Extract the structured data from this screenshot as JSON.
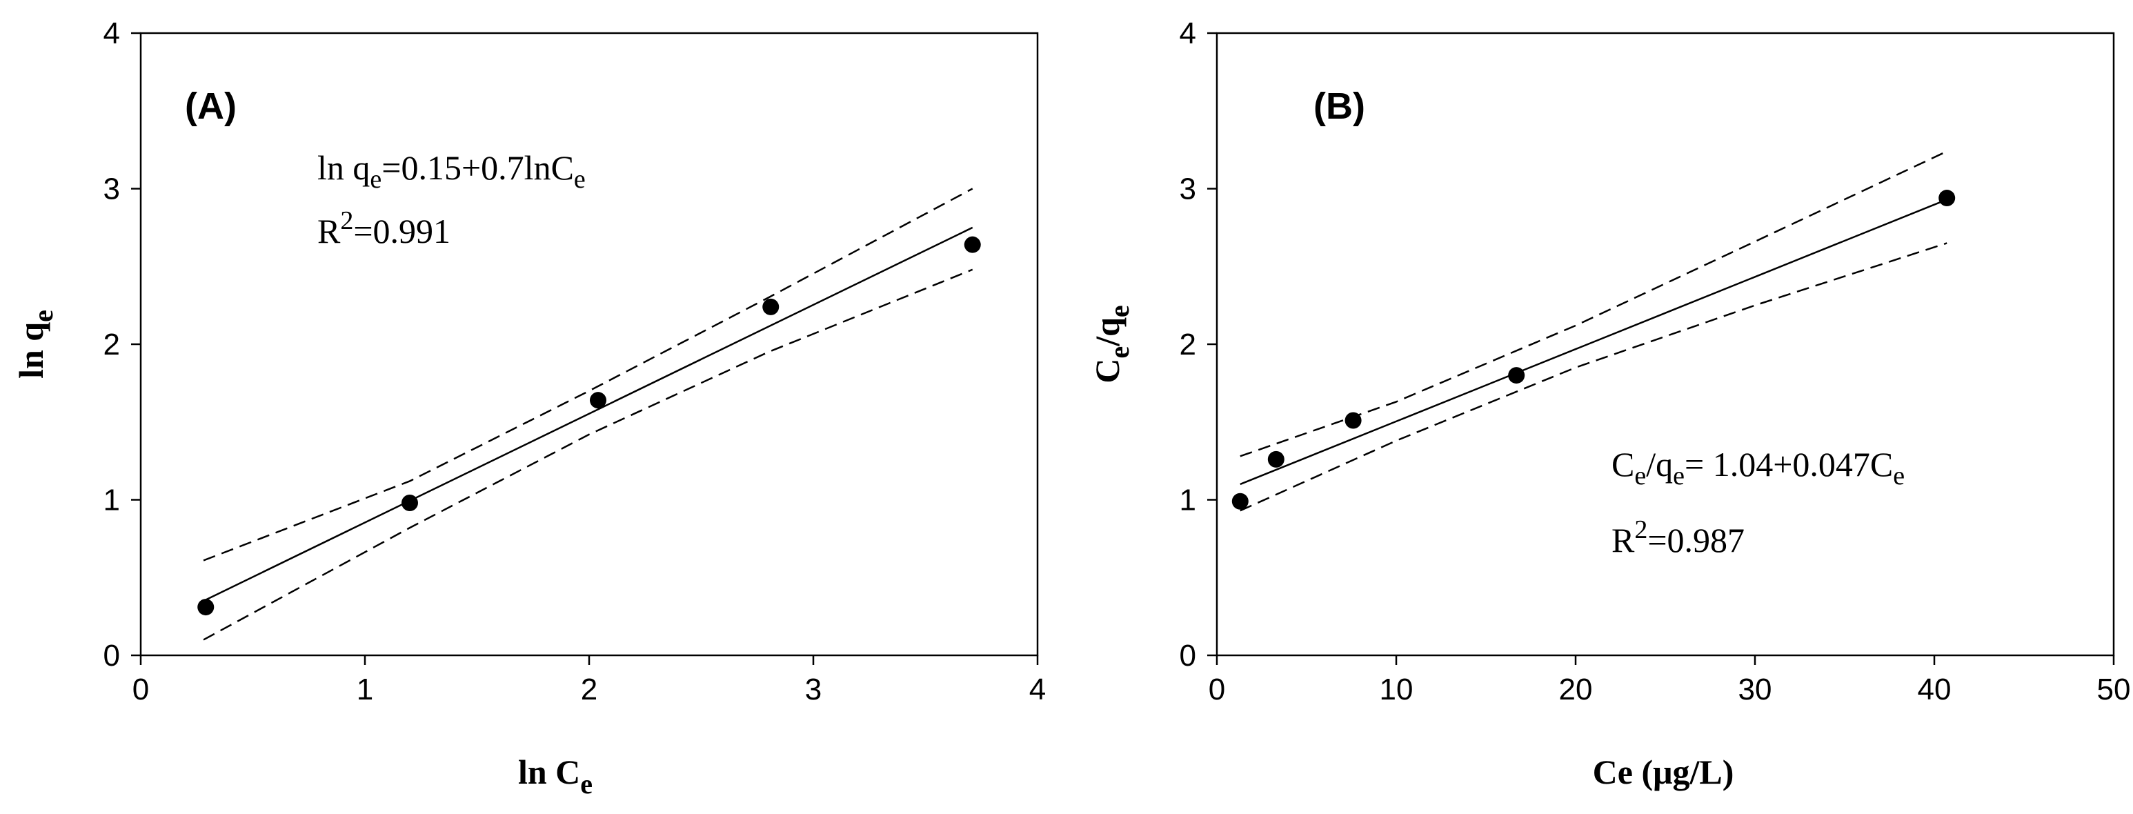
{
  "chart_data": [
    {
      "type": "scatter",
      "panel_label": "(A)",
      "xlabel_main": "ln C",
      "xlabel_sub": "e",
      "ylabel_main": "ln q",
      "ylabel_sub": "e",
      "xlim": [
        0,
        4
      ],
      "ylim": [
        0,
        4
      ],
      "xticks": [
        "0",
        "1",
        "2",
        "3",
        "4"
      ],
      "yticks": [
        "0",
        "1",
        "2",
        "3",
        "4"
      ],
      "points": [
        {
          "x": 0.29,
          "y": 0.31
        },
        {
          "x": 1.2,
          "y": 0.98
        },
        {
          "x": 2.04,
          "y": 1.64
        },
        {
          "x": 2.81,
          "y": 2.24
        },
        {
          "x": 3.71,
          "y": 2.64
        }
      ],
      "fit_line": [
        {
          "x": 0.28,
          "y": 0.35
        },
        {
          "x": 3.71,
          "y": 2.75
        }
      ],
      "confidence_upper": [
        {
          "x": 0.28,
          "y": 0.61
        },
        {
          "x": 1.2,
          "y": 1.12
        },
        {
          "x": 2.0,
          "y": 1.7
        },
        {
          "x": 2.8,
          "y": 2.3
        },
        {
          "x": 3.71,
          "y": 3.0
        }
      ],
      "confidence_lower": [
        {
          "x": 0.28,
          "y": 0.1
        },
        {
          "x": 1.2,
          "y": 0.82
        },
        {
          "x": 2.0,
          "y": 1.42
        },
        {
          "x": 2.8,
          "y": 1.95
        },
        {
          "x": 3.71,
          "y": 2.48
        }
      ],
      "equation": {
        "line1": [
          {
            "t": "ln q",
            "sub": false
          },
          {
            "t": "e",
            "sub": true
          },
          {
            "t": "=0.15+0.7lnC",
            "sub": false
          },
          {
            "t": "e",
            "sub": true
          }
        ],
        "line2": [
          {
            "t": "R",
            "sup": false
          },
          {
            "t": "2",
            "sup": true
          },
          {
            "t": "=0.991",
            "sup": false
          }
        ]
      }
    },
    {
      "type": "scatter",
      "panel_label": "(B)",
      "xlabel_main": "Ce (μg/L)",
      "xlabel_sub": "",
      "ylabel_parts": [
        {
          "t": "C",
          "sub": false
        },
        {
          "t": "e",
          "sub": true
        },
        {
          "t": "/q",
          "sub": false
        },
        {
          "t": "e",
          "sub": true
        }
      ],
      "xlim": [
        0,
        50
      ],
      "ylim": [
        0,
        4
      ],
      "xticks": [
        "0",
        "10",
        "20",
        "30",
        "40",
        "50"
      ],
      "yticks": [
        "0",
        "1",
        "2",
        "3",
        "4"
      ],
      "points": [
        {
          "x": 1.3,
          "y": 0.99
        },
        {
          "x": 3.3,
          "y": 1.26
        },
        {
          "x": 7.6,
          "y": 1.51
        },
        {
          "x": 16.7,
          "y": 1.8
        },
        {
          "x": 40.7,
          "y": 2.94
        }
      ],
      "fit_line": [
        {
          "x": 1.3,
          "y": 1.1
        },
        {
          "x": 40.7,
          "y": 2.93
        }
      ],
      "confidence_upper": [
        {
          "x": 1.3,
          "y": 1.28
        },
        {
          "x": 10,
          "y": 1.63
        },
        {
          "x": 20,
          "y": 2.12
        },
        {
          "x": 30,
          "y": 2.66
        },
        {
          "x": 40.7,
          "y": 3.24
        }
      ],
      "confidence_lower": [
        {
          "x": 1.3,
          "y": 0.93
        },
        {
          "x": 10,
          "y": 1.38
        },
        {
          "x": 20,
          "y": 1.85
        },
        {
          "x": 30,
          "y": 2.25
        },
        {
          "x": 40.7,
          "y": 2.65
        }
      ],
      "equation": {
        "line1": [
          {
            "t": "C",
            "sub": false
          },
          {
            "t": "e",
            "sub": true
          },
          {
            "t": "/q",
            "sub": false
          },
          {
            "t": "e",
            "sub": true
          },
          {
            "t": "= 1.04+0.047C",
            "sub": false
          },
          {
            "t": "e",
            "sub": true
          }
        ],
        "line2": [
          {
            "t": "R",
            "sup": false
          },
          {
            "t": "2",
            "sup": true
          },
          {
            "t": "=0.987",
            "sup": false
          }
        ]
      }
    }
  ]
}
